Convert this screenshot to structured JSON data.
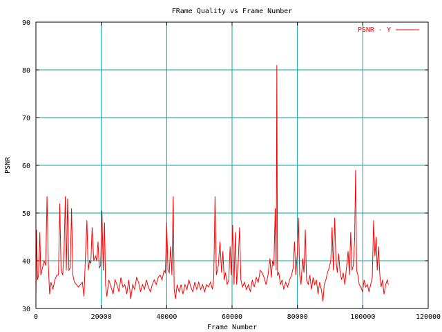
{
  "chart_data": {
    "type": "line",
    "title": "FRame Quality vs Frame Number",
    "xlabel": "Frame Number",
    "ylabel": "PSNR",
    "xlim": [
      0,
      120000
    ],
    "ylim": [
      30,
      90
    ],
    "x_ticks": [
      0,
      20000,
      40000,
      60000,
      80000,
      100000,
      120000
    ],
    "y_ticks": [
      30,
      40,
      50,
      60,
      70,
      80,
      90
    ],
    "grid": true,
    "legend_position": "top-right",
    "series": [
      {
        "name": "PSNR - Y",
        "color": "#ff0000",
        "points": [
          [
            0,
            32
          ],
          [
            200,
            46.5
          ],
          [
            500,
            36
          ],
          [
            800,
            37
          ],
          [
            1200,
            46
          ],
          [
            1500,
            37
          ],
          [
            2000,
            38.5
          ],
          [
            2500,
            40
          ],
          [
            3000,
            39
          ],
          [
            3400,
            53.5
          ],
          [
            3800,
            39
          ],
          [
            4200,
            33
          ],
          [
            4600,
            35.5
          ],
          [
            5200,
            34
          ],
          [
            5800,
            36
          ],
          [
            6400,
            37
          ],
          [
            6900,
            37
          ],
          [
            7300,
            52
          ],
          [
            7700,
            38
          ],
          [
            8200,
            37
          ],
          [
            8600,
            42
          ],
          [
            9000,
            53.5
          ],
          [
            9300,
            38
          ],
          [
            9700,
            53
          ],
          [
            10100,
            38
          ],
          [
            10500,
            38.5
          ],
          [
            10900,
            51
          ],
          [
            11300,
            37
          ],
          [
            11800,
            35.5
          ],
          [
            12400,
            35
          ],
          [
            13000,
            34.5
          ],
          [
            13600,
            35
          ],
          [
            14200,
            35.5
          ],
          [
            14700,
            32.5
          ],
          [
            15100,
            40
          ],
          [
            15600,
            48.5
          ],
          [
            16000,
            38
          ],
          [
            16400,
            40
          ],
          [
            16800,
            39.5
          ],
          [
            17200,
            47
          ],
          [
            17700,
            40
          ],
          [
            18200,
            41
          ],
          [
            18600,
            40
          ],
          [
            19000,
            44
          ],
          [
            19400,
            38.5
          ],
          [
            19800,
            39
          ],
          [
            20200,
            50.5
          ],
          [
            20600,
            38
          ],
          [
            21000,
            48
          ],
          [
            21300,
            35
          ],
          [
            21700,
            32.5
          ],
          [
            22300,
            36
          ],
          [
            23000,
            34.5
          ],
          [
            23600,
            33
          ],
          [
            24200,
            36
          ],
          [
            24800,
            35
          ],
          [
            25400,
            33.5
          ],
          [
            26000,
            36.5
          ],
          [
            26600,
            34.5
          ],
          [
            27200,
            35
          ],
          [
            27800,
            33
          ],
          [
            28400,
            36
          ],
          [
            29000,
            32
          ],
          [
            29600,
            35
          ],
          [
            30200,
            34
          ],
          [
            30800,
            36.5
          ],
          [
            31400,
            35.5
          ],
          [
            32000,
            33.5
          ],
          [
            32600,
            35
          ],
          [
            33200,
            34
          ],
          [
            33800,
            36
          ],
          [
            34400,
            34.5
          ],
          [
            35000,
            33.5
          ],
          [
            35600,
            35
          ],
          [
            36200,
            36
          ],
          [
            36800,
            35
          ],
          [
            37400,
            36.5
          ],
          [
            38000,
            37
          ],
          [
            38600,
            36
          ],
          [
            39200,
            38
          ],
          [
            39600,
            37.5
          ],
          [
            40000,
            48
          ],
          [
            40400,
            38
          ],
          [
            40800,
            37.5
          ],
          [
            41200,
            43
          ],
          [
            41600,
            37
          ],
          [
            42000,
            53.5
          ],
          [
            42300,
            34
          ],
          [
            42700,
            32
          ],
          [
            43200,
            35
          ],
          [
            43800,
            33.5
          ],
          [
            44400,
            35
          ],
          [
            45000,
            33
          ],
          [
            45600,
            35
          ],
          [
            46200,
            34
          ],
          [
            46800,
            36
          ],
          [
            47400,
            34.5
          ],
          [
            48000,
            33.5
          ],
          [
            48600,
            35.5
          ],
          [
            49200,
            34
          ],
          [
            49800,
            35.5
          ],
          [
            50400,
            34
          ],
          [
            51000,
            35
          ],
          [
            51600,
            33.5
          ],
          [
            52200,
            35
          ],
          [
            52800,
            34.5
          ],
          [
            53400,
            35.5
          ],
          [
            54000,
            34
          ],
          [
            54400,
            36.5
          ],
          [
            54800,
            53.5
          ],
          [
            55200,
            37
          ],
          [
            55800,
            39
          ],
          [
            56300,
            44
          ],
          [
            56800,
            37.5
          ],
          [
            57200,
            42
          ],
          [
            57600,
            36
          ],
          [
            58000,
            37.5
          ],
          [
            58500,
            35
          ],
          [
            59000,
            36
          ],
          [
            59400,
            43
          ],
          [
            59800,
            37
          ],
          [
            60200,
            47.5
          ],
          [
            60600,
            35
          ],
          [
            61000,
            46
          ],
          [
            61400,
            35
          ],
          [
            61900,
            40
          ],
          [
            62300,
            47
          ],
          [
            62700,
            36
          ],
          [
            63200,
            34.5
          ],
          [
            63800,
            35.5
          ],
          [
            64400,
            34
          ],
          [
            65000,
            35
          ],
          [
            65600,
            33.5
          ],
          [
            66200,
            36
          ],
          [
            66800,
            34.5
          ],
          [
            67400,
            36.5
          ],
          [
            68000,
            35.5
          ],
          [
            68600,
            38
          ],
          [
            69200,
            37.5
          ],
          [
            69800,
            36.5
          ],
          [
            70400,
            35
          ],
          [
            71000,
            37
          ],
          [
            71600,
            40.5
          ],
          [
            72000,
            36.5
          ],
          [
            72400,
            40
          ],
          [
            72800,
            39
          ],
          [
            73200,
            51
          ],
          [
            73500,
            38
          ],
          [
            73700,
            81
          ],
          [
            73900,
            37
          ],
          [
            74300,
            37.5
          ],
          [
            74800,
            35
          ],
          [
            75300,
            36
          ],
          [
            75800,
            34
          ],
          [
            76400,
            35.5
          ],
          [
            77000,
            34.5
          ],
          [
            77600,
            36
          ],
          [
            78200,
            37
          ],
          [
            78700,
            38.5
          ],
          [
            79100,
            44
          ],
          [
            79500,
            37
          ],
          [
            80000,
            42
          ],
          [
            80300,
            49
          ],
          [
            80700,
            37
          ],
          [
            81100,
            35
          ],
          [
            81600,
            40.5
          ],
          [
            82000,
            37.5
          ],
          [
            82400,
            46.5
          ],
          [
            82800,
            36
          ],
          [
            83300,
            35
          ],
          [
            83800,
            37
          ],
          [
            84300,
            34
          ],
          [
            84800,
            36.5
          ],
          [
            85300,
            35
          ],
          [
            85800,
            36
          ],
          [
            86300,
            33
          ],
          [
            86800,
            35.5
          ],
          [
            87300,
            34
          ],
          [
            87800,
            31.5
          ],
          [
            88200,
            35
          ],
          [
            88700,
            36
          ],
          [
            89200,
            37.5
          ],
          [
            89700,
            38.5
          ],
          [
            90200,
            40
          ],
          [
            90600,
            47
          ],
          [
            91000,
            38
          ],
          [
            91400,
            49
          ],
          [
            91800,
            40
          ],
          [
            92200,
            37.5
          ],
          [
            92600,
            41.5
          ],
          [
            93000,
            38
          ],
          [
            93500,
            36
          ],
          [
            94000,
            37.5
          ],
          [
            94500,
            35
          ],
          [
            95000,
            38.5
          ],
          [
            95500,
            42
          ],
          [
            95900,
            37
          ],
          [
            96300,
            46
          ],
          [
            96700,
            38
          ],
          [
            97100,
            39
          ],
          [
            97500,
            44.5
          ],
          [
            97800,
            59
          ],
          [
            98100,
            38
          ],
          [
            98500,
            37
          ],
          [
            98900,
            35
          ],
          [
            99400,
            34.5
          ],
          [
            99900,
            33.5
          ],
          [
            100400,
            36
          ],
          [
            100900,
            34.5
          ],
          [
            101400,
            35
          ],
          [
            101900,
            33.5
          ],
          [
            102400,
            35
          ],
          [
            102900,
            36.5
          ],
          [
            103300,
            48.5
          ],
          [
            103700,
            41
          ],
          [
            104100,
            45
          ],
          [
            104400,
            38
          ],
          [
            104800,
            43
          ],
          [
            105200,
            37
          ],
          [
            105600,
            34.5
          ],
          [
            106000,
            36
          ],
          [
            106500,
            33
          ],
          [
            107000,
            35
          ],
          [
            107500,
            36
          ],
          [
            107800,
            35
          ]
        ]
      }
    ]
  }
}
